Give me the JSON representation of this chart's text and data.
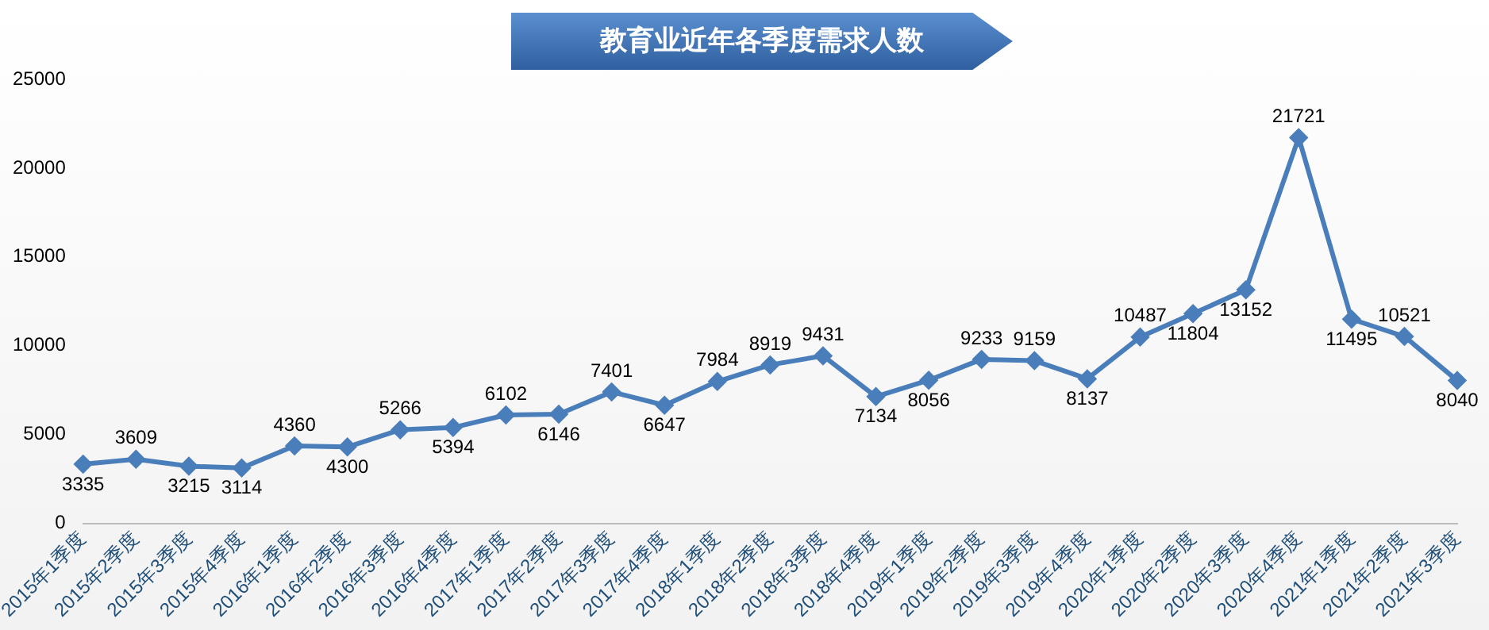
{
  "chart_data": {
    "type": "line",
    "title": "教育业近年各季度需求人数",
    "categories": [
      "2015年1季度",
      "2015年2季度",
      "2015年3季度",
      "2015年4季度",
      "2016年1季度",
      "2016年2季度",
      "2016年3季度",
      "2016年4季度",
      "2017年1季度",
      "2017年2季度",
      "2017年3季度",
      "2017年4季度",
      "2018年1季度",
      "2018年2季度",
      "2018年3季度",
      "2018年4季度",
      "2019年1季度",
      "2019年2季度",
      "2019年3季度",
      "2019年4季度",
      "2020年1季度",
      "2020年2季度",
      "2020年3季度",
      "2020年4季度",
      "2021年1季度",
      "2021年2季度",
      "2021年3季度"
    ],
    "series": [
      {
        "color": "#4a7ebb",
        "values": [
          3335,
          3609,
          3215,
          3114,
          4360,
          4300,
          5266,
          5394,
          6102,
          6146,
          7401,
          6647,
          7984,
          8919,
          9431,
          7134,
          8056,
          9233,
          9159,
          8137,
          10487,
          11804,
          13152,
          21721,
          11495,
          10521,
          8040
        ]
      }
    ],
    "ylim": [
      0,
      25000
    ],
    "yticks": [
      0,
      5000,
      10000,
      15000,
      20000,
      25000
    ],
    "grid": false,
    "legend": false,
    "marker": "diamond",
    "line_style": "solid",
    "data_labels": true
  }
}
